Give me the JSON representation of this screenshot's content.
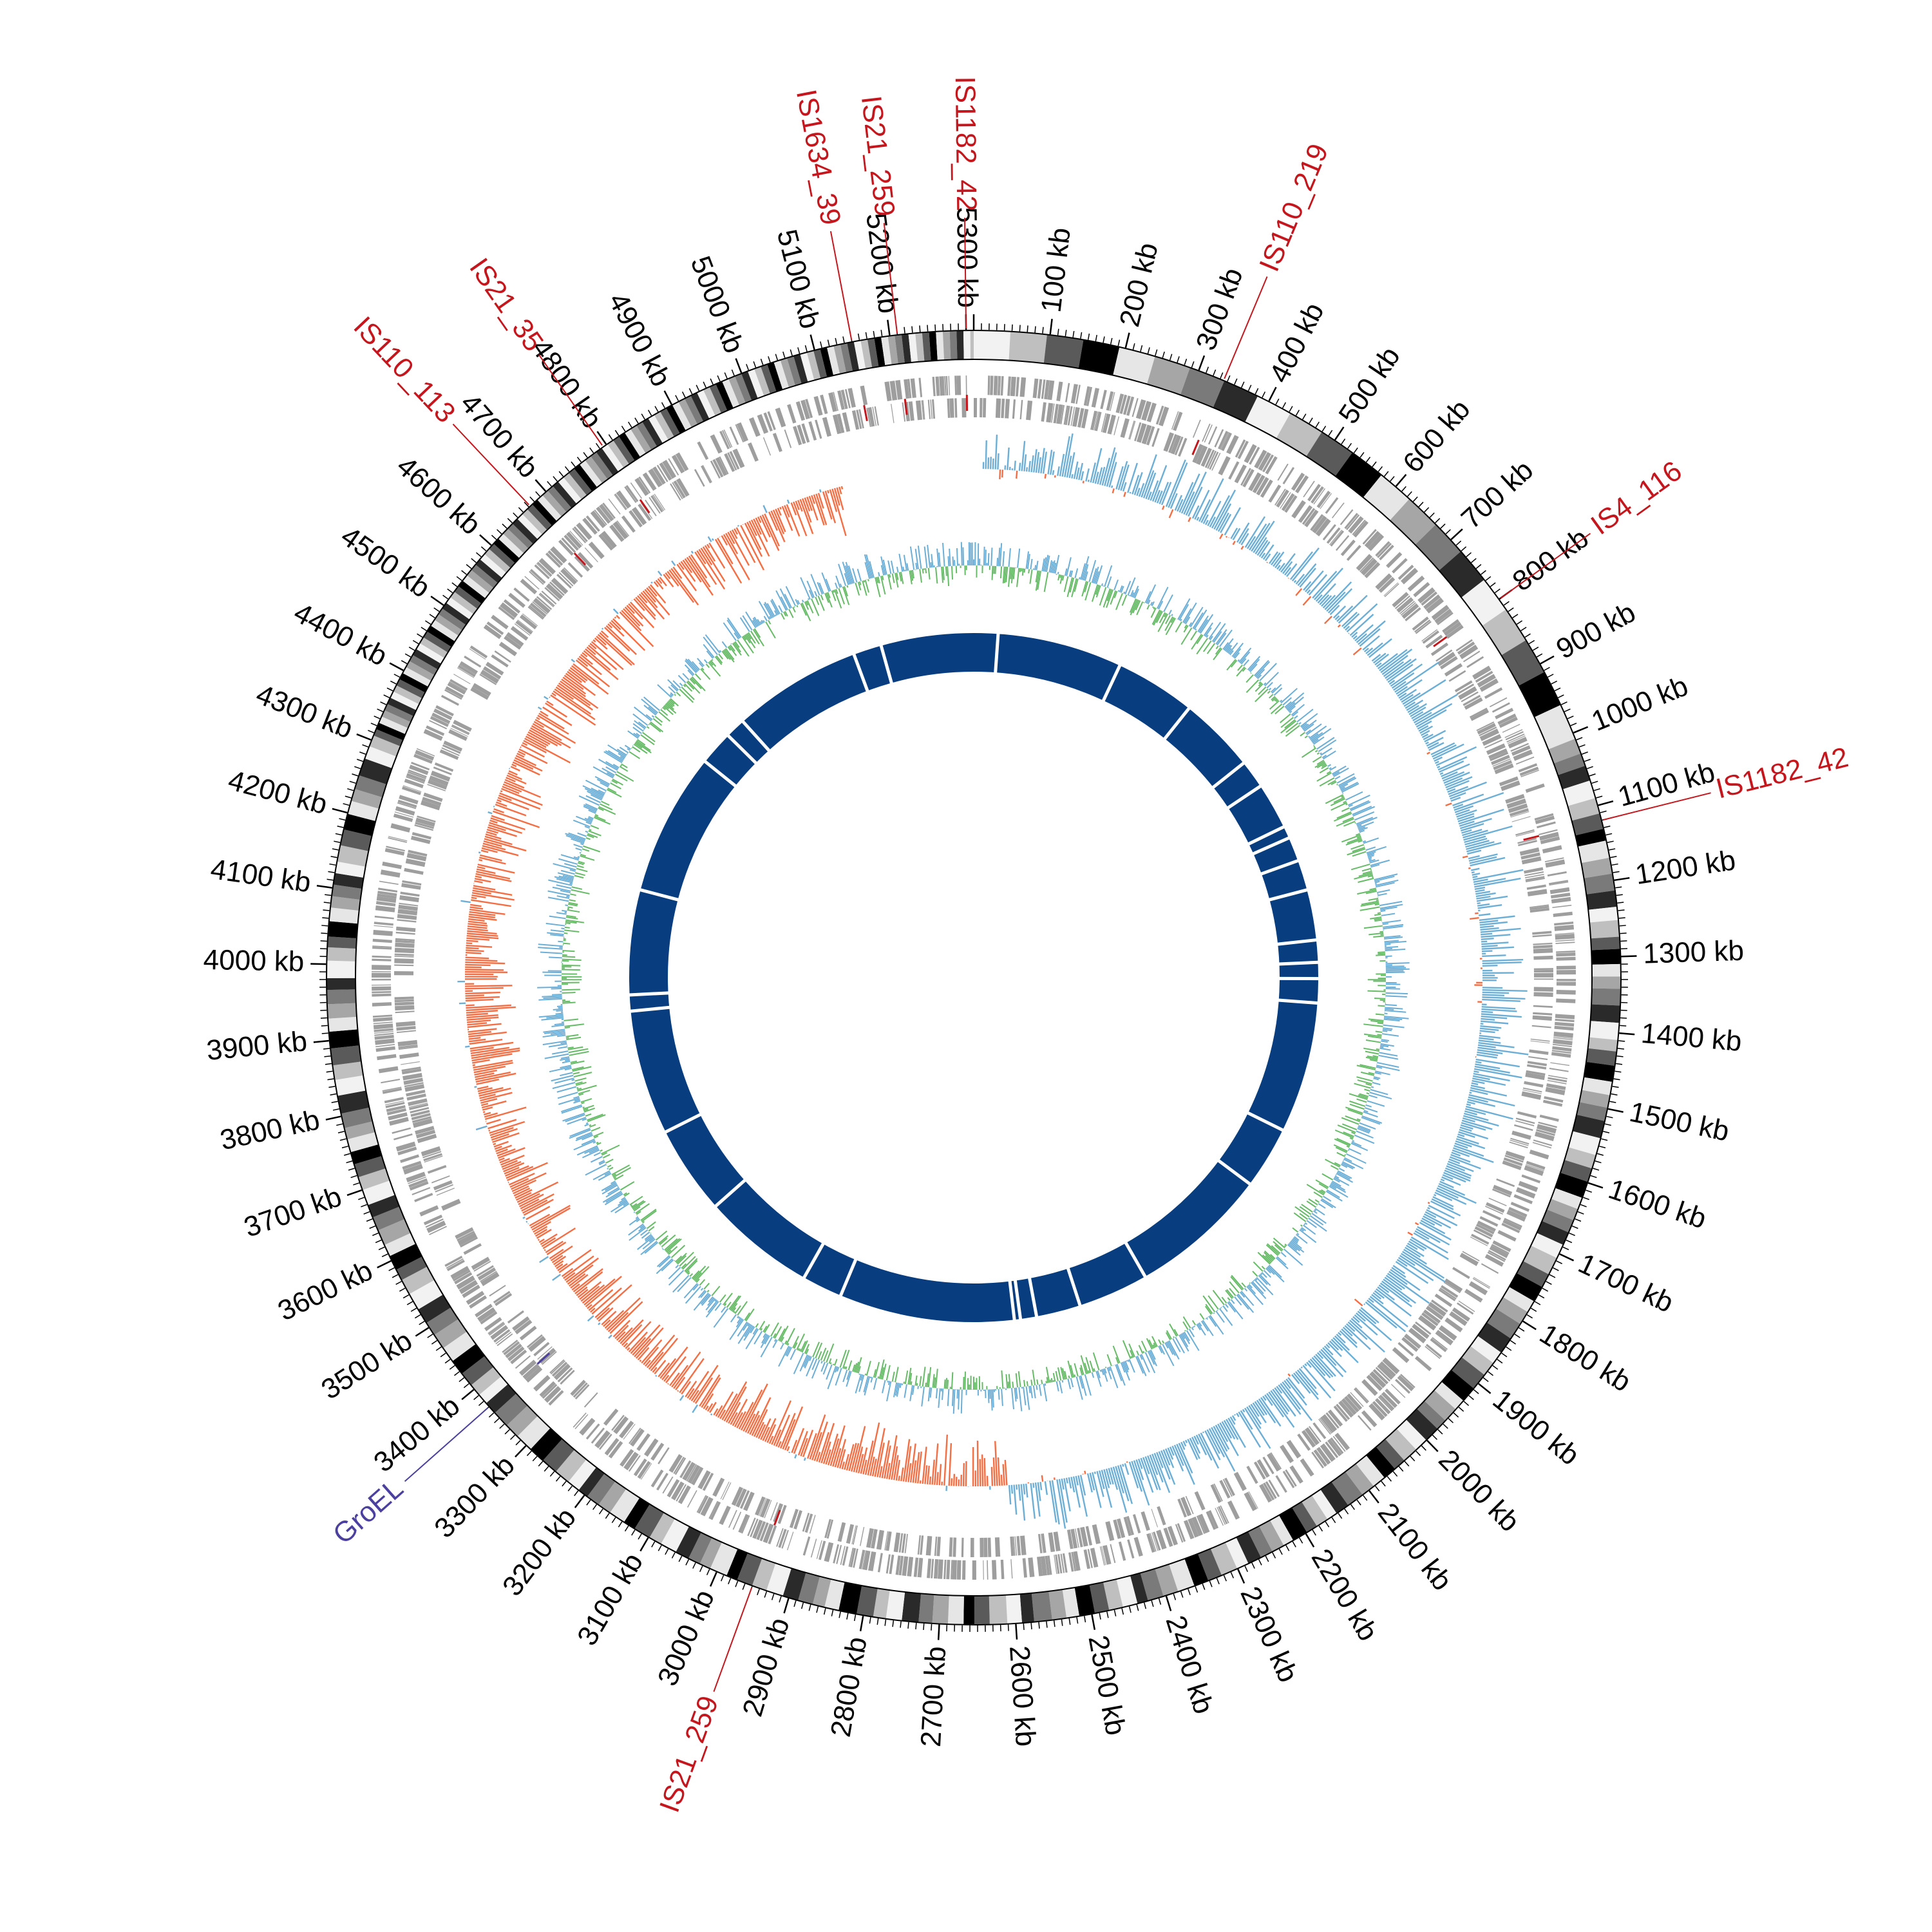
{
  "genome": {
    "length_kb": 5310,
    "tick_step_kb": 100,
    "tick_label_unit": "kb"
  },
  "colors": {
    "ideogram_shades": [
      "#f2f2f2",
      "#bfbfbf",
      "#5a5a5a",
      "#000000",
      "#e6e6e6",
      "#a6a6a6",
      "#7a7a7a",
      "#2a2a2a"
    ],
    "gene_track": "#9e9e9e",
    "skew_positive": "#6baed6",
    "skew_negative": "#f46d43",
    "gc_content_above": "#6baed6",
    "gc_content_below": "#66bb66",
    "homology_ring": "#083d7f",
    "is_element": "#c4161c",
    "groel": "#4b3fa0"
  },
  "annotations": [
    {
      "name": "IS1182_42",
      "position_kb": 5300,
      "type": "is_element"
    },
    {
      "name": "IS21_259",
      "position_kb": 5210,
      "type": "is_element"
    },
    {
      "name": "IS1634_39",
      "position_kb": 5150,
      "type": "is_element"
    },
    {
      "name": "IS21_35",
      "position_kb": 4795,
      "type": "is_element"
    },
    {
      "name": "IS110_113",
      "position_kb": 4672,
      "type": "is_element"
    },
    {
      "name": "IS110_219",
      "position_kb": 335,
      "type": "is_element"
    },
    {
      "name": "IS4_116",
      "position_kb": 800,
      "type": "is_element"
    },
    {
      "name": "IS1182_42",
      "position_kb": 1120,
      "type": "is_element"
    },
    {
      "name": "IS21_259",
      "position_kb": 2950,
      "type": "is_element"
    },
    {
      "name": "GroEL",
      "position_kb": 3370,
      "type": "groel"
    }
  ],
  "homology_gaps_kb": [
    60,
    370,
    570,
    760,
    830,
    945,
    975,
    1035,
    1110,
    1235,
    1290,
    1330,
    1390,
    1715,
    1870,
    2215,
    2390,
    2500,
    2540,
    2555,
    2990,
    3090,
    3370,
    3590,
    3900,
    3940,
    4200,
    4555,
    4640,
    4690,
    5010,
    5080
  ]
}
